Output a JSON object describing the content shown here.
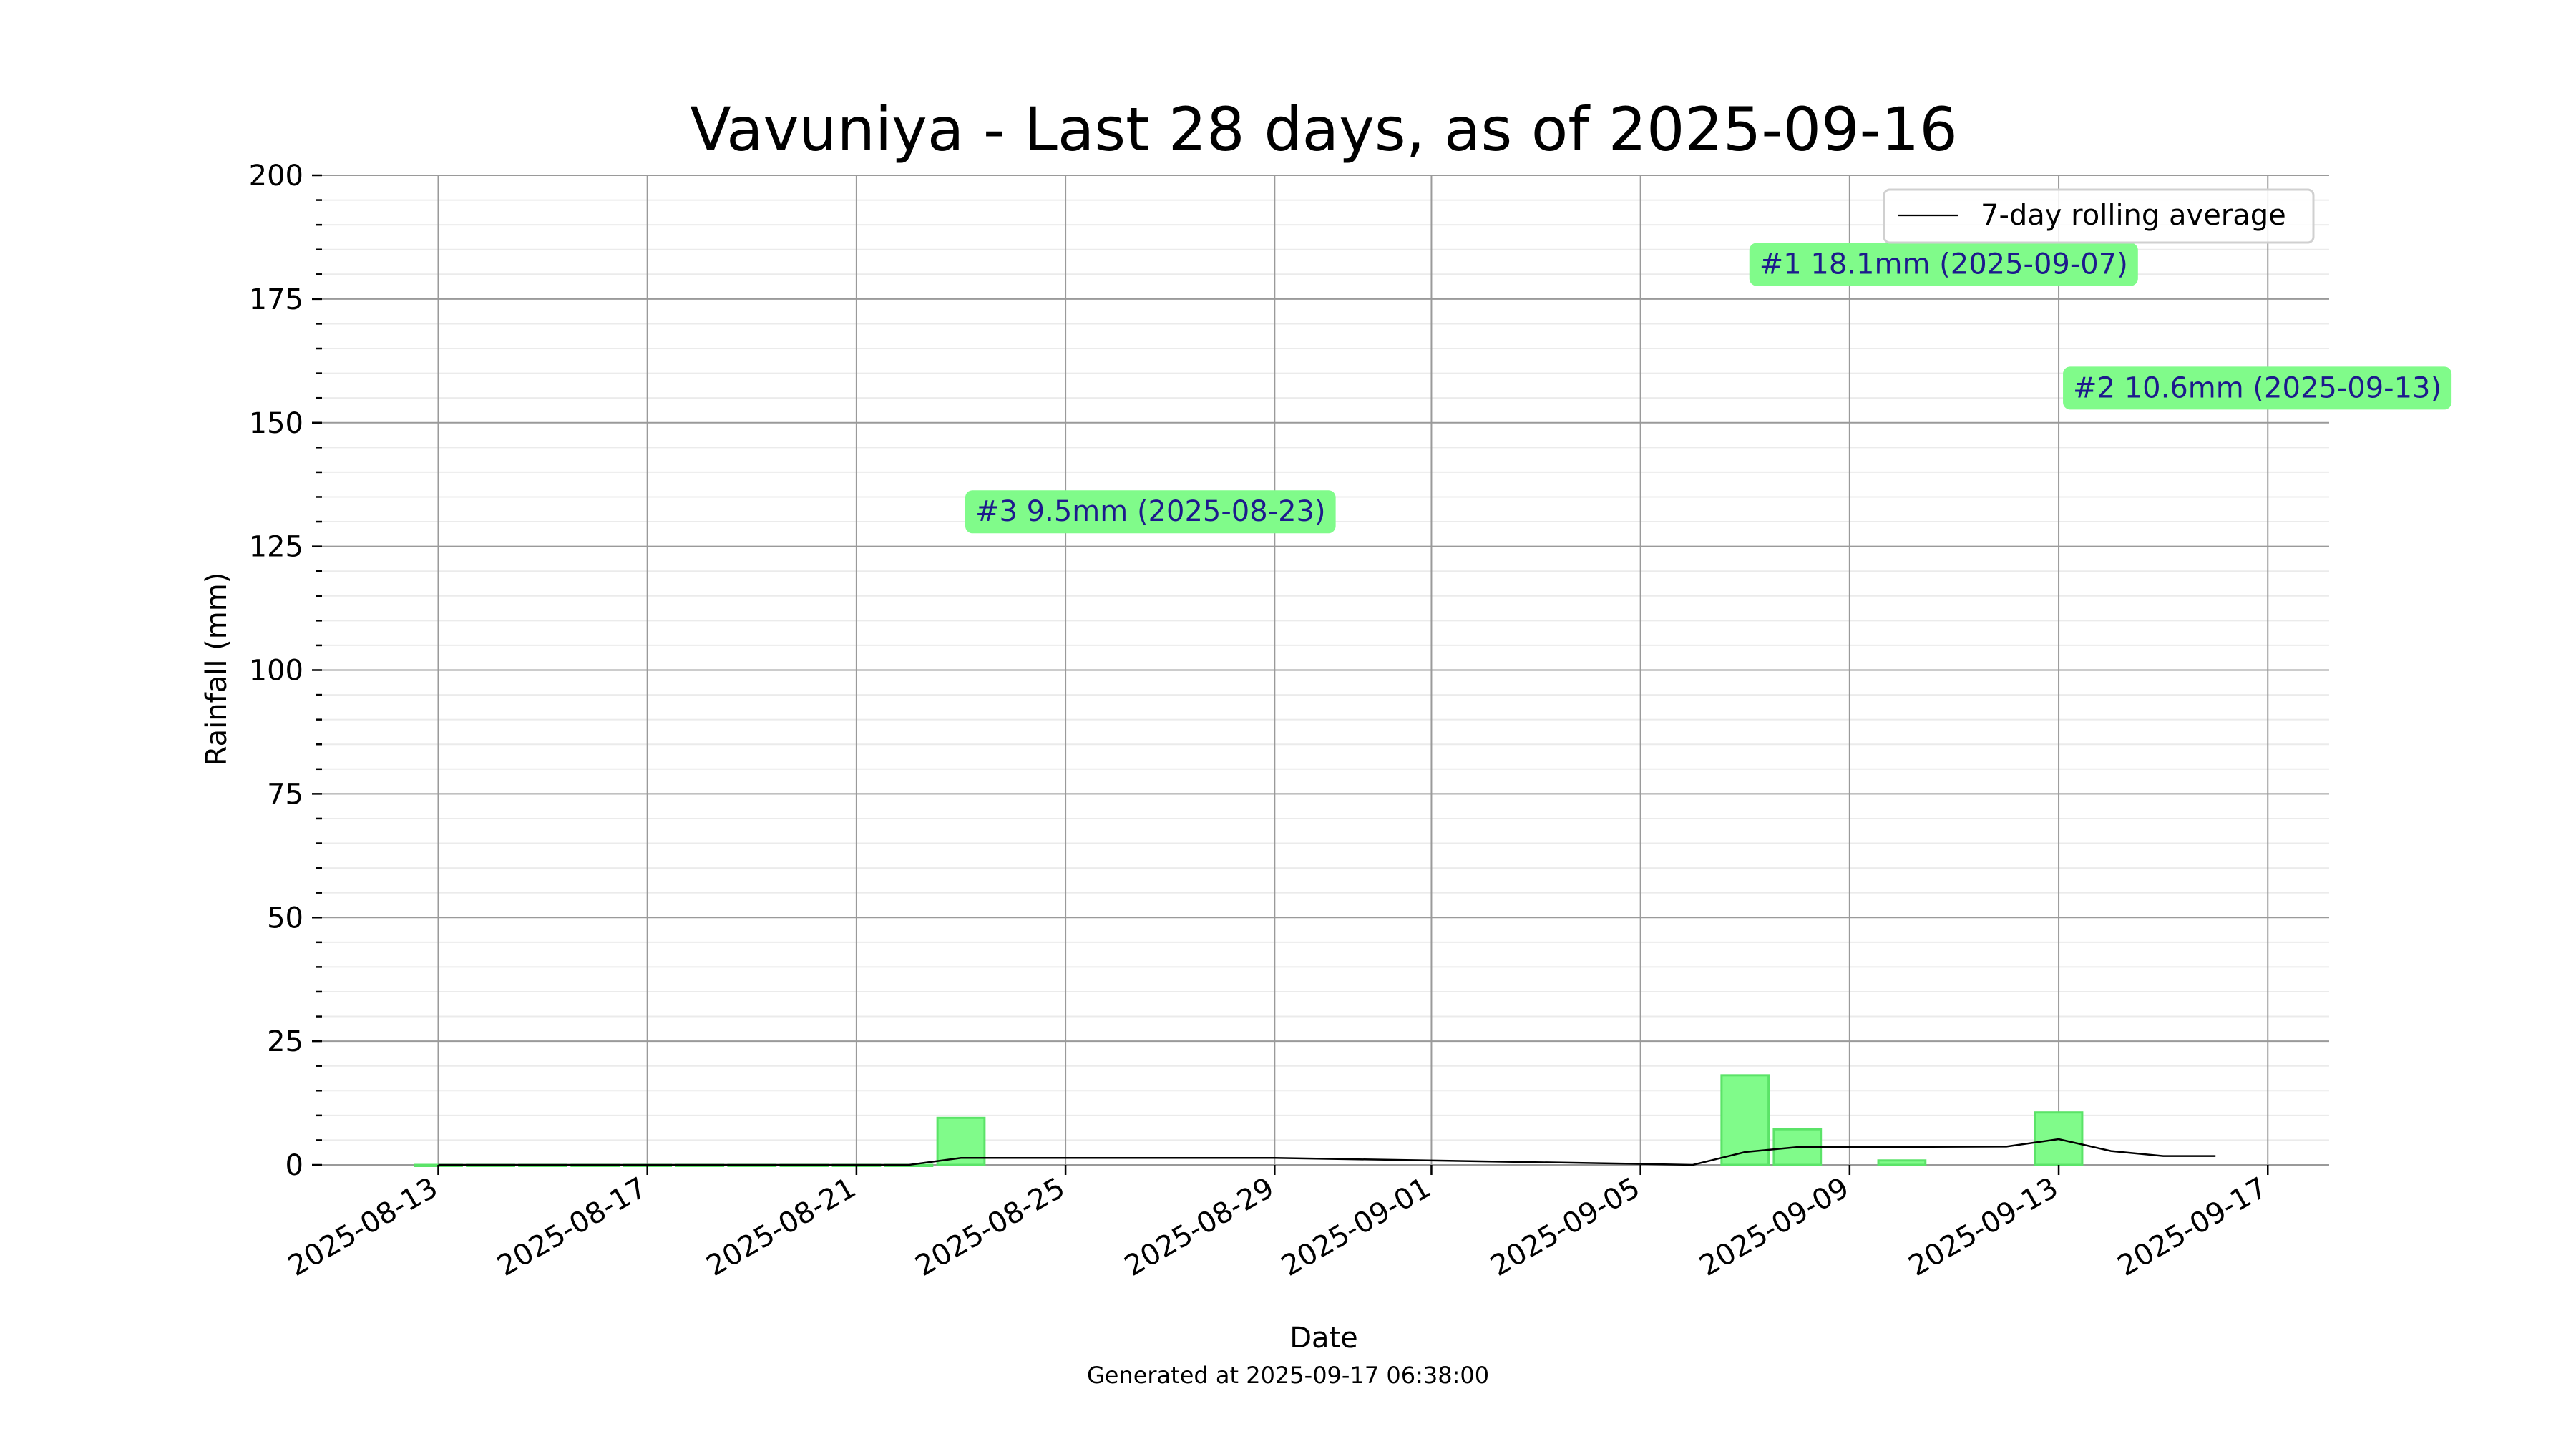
{
  "chart_data": {
    "type": "bar",
    "title": "Vavuniya - Last 28 days, as of 2025-09-16",
    "xlabel": "Date",
    "ylabel": "Rainfall (mm)",
    "ylim": [
      0,
      200
    ],
    "y_ticks": [
      0,
      25,
      50,
      75,
      100,
      125,
      150,
      175,
      200
    ],
    "x_ticks": [
      "2025-08-13",
      "2025-08-17",
      "2025-08-21",
      "2025-08-25",
      "2025-08-29",
      "2025-09-01",
      "2025-09-05",
      "2025-09-09",
      "2025-09-13",
      "2025-09-17"
    ],
    "grid": true,
    "legend_position": "top-right",
    "colors": {
      "bar_fill": "#80fb8a",
      "bar_edge": "#5be368",
      "line": "#000000",
      "annotation_bg": "#80fb8a",
      "annotation_text": "#1d1a8c"
    },
    "series": [
      {
        "type": "bar",
        "x": [
          "2025-08-13",
          "2025-08-14",
          "2025-08-15",
          "2025-08-16",
          "2025-08-17",
          "2025-08-18",
          "2025-08-19",
          "2025-08-20",
          "2025-08-21",
          "2025-08-22",
          "2025-08-23",
          "2025-09-07",
          "2025-09-08",
          "2025-09-10",
          "2025-09-13"
        ],
        "values": [
          0,
          0,
          0,
          0,
          0,
          0,
          0,
          0,
          0,
          0,
          9.5,
          18.1,
          7.2,
          0.9,
          10.6
        ]
      },
      {
        "type": "line",
        "name": "7-day rolling average",
        "x": [
          "2025-08-13",
          "2025-08-14",
          "2025-08-15",
          "2025-08-16",
          "2025-08-17",
          "2025-08-18",
          "2025-08-19",
          "2025-08-20",
          "2025-08-21",
          "2025-08-22",
          "2025-08-23",
          "2025-08-29",
          "2025-09-05",
          "2025-09-06",
          "2025-09-07",
          "2025-09-08",
          "2025-09-09",
          "2025-09-12",
          "2025-09-13",
          "2025-09-14",
          "2025-09-15",
          "2025-09-16"
        ],
        "values": [
          0,
          0,
          0,
          0,
          0,
          0,
          0,
          0,
          0,
          0,
          1.4,
          1.4,
          0.2,
          0.0,
          2.6,
          3.6,
          3.6,
          3.7,
          5.2,
          2.8,
          1.8,
          1.8
        ]
      }
    ],
    "annotations": [
      {
        "text": "#1 18.1mm (2025-09-07)",
        "date": "2025-09-07",
        "y": 182
      },
      {
        "text": "#2 10.6mm (2025-09-13)",
        "date": "2025-09-13",
        "y": 157
      },
      {
        "text": "#3 9.5mm (2025-08-23)",
        "date": "2025-08-23",
        "y": 132
      }
    ]
  },
  "footer": "Generated at 2025-09-17 06:38:00"
}
